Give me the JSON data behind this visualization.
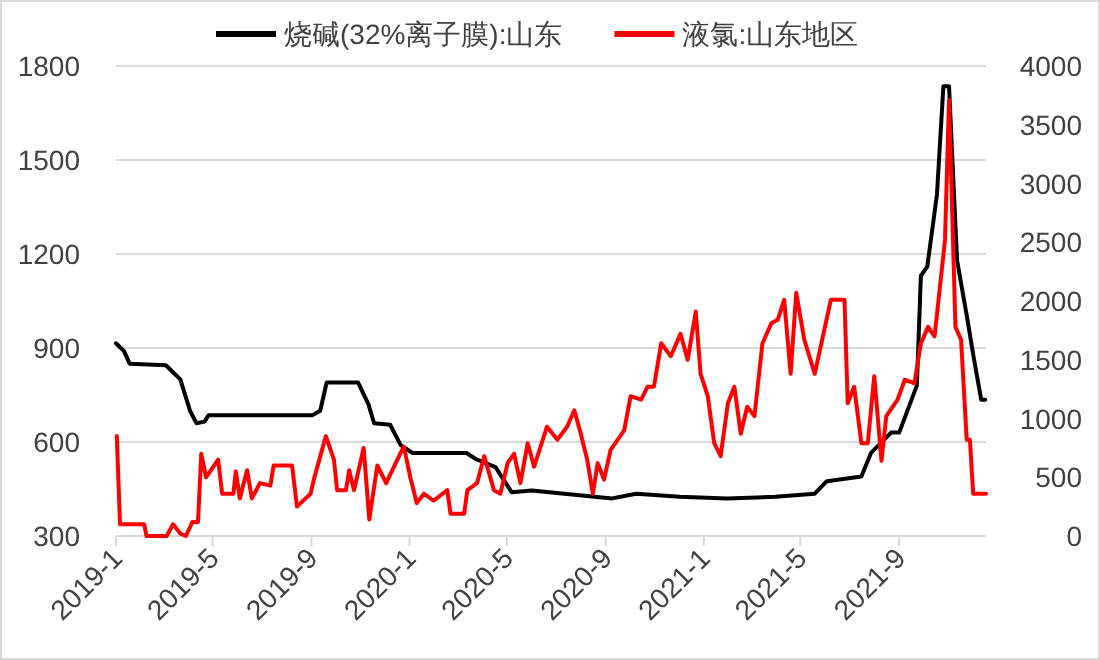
{
  "chart_data": {
    "type": "line",
    "legend": "top",
    "grid": "y",
    "line_style": "solid",
    "xlim": [
      "2019-01-01",
      "2021-12-18"
    ],
    "xticks": [
      {
        "value": "2019-01-01",
        "label": "2019-1"
      },
      {
        "value": "2019-05-01",
        "label": "2019-5"
      },
      {
        "value": "2019-09-01",
        "label": "2019-9"
      },
      {
        "value": "2020-01-01",
        "label": "2020-1"
      },
      {
        "value": "2020-05-01",
        "label": "2020-5"
      },
      {
        "value": "2020-09-01",
        "label": "2020-9"
      },
      {
        "value": "2021-01-01",
        "label": "2021-1"
      },
      {
        "value": "2021-05-01",
        "label": "2021-5"
      },
      {
        "value": "2021-09-01",
        "label": "2021-9"
      }
    ],
    "ylim": [
      300,
      1800
    ],
    "yticks": [
      300,
      600,
      900,
      1200,
      1500,
      1800
    ],
    "y2lim": [
      0,
      4000
    ],
    "y2ticks": [
      0,
      500,
      1000,
      1500,
      2000,
      2500,
      3000,
      3500,
      4000
    ],
    "series": [
      {
        "name": "烧碱(32%离子膜):山东",
        "color": "#000000",
        "x": [
          "2019-01-01",
          "2019-01-11",
          "2019-01-18",
          "2019-03-04",
          "2019-03-22",
          "2019-04-03",
          "2019-04-11",
          "2019-04-21",
          "2019-04-26",
          "2019-09-02",
          "2019-09-12",
          "2019-09-20",
          "2019-10-29",
          "2019-11-11",
          "2019-11-18",
          "2019-12-08",
          "2019-12-21",
          "2020-01-05",
          "2020-03-12",
          "2020-03-24",
          "2020-04-17",
          "2020-05-07",
          "2020-06-01",
          "2020-09-09",
          "2020-10-09",
          "2020-12-02",
          "2021-01-30",
          "2021-03-31",
          "2021-05-19",
          "2021-06-03",
          "2021-07-16",
          "2021-07-28",
          "2021-08-22",
          "2021-09-01",
          "2021-09-23",
          "2021-09-28",
          "2021-10-06",
          "2021-10-18",
          "2021-10-26",
          "2021-11-02",
          "2021-11-12",
          "2021-11-25",
          "2021-12-02",
          "2021-12-12",
          "2021-12-17"
        ],
        "values": [
          915,
          890,
          850,
          845,
          800,
          700,
          660,
          665,
          685,
          685,
          700,
          790,
          790,
          720,
          660,
          655,
          590,
          565,
          565,
          545,
          520,
          440,
          445,
          420,
          435,
          425,
          420,
          425,
          435,
          475,
          490,
          565,
          630,
          630,
          780,
          1130,
          1160,
          1390,
          1735,
          1735,
          1180,
          990,
          880,
          735,
          735
        ]
      },
      {
        "name": "液氯:山东地区",
        "color": "#ff0000",
        "axis": "y2",
        "x": [
          "2019-01-02",
          "2019-01-06",
          "2019-02-05",
          "2019-02-08",
          "2019-03-05",
          "2019-03-13",
          "2019-03-22",
          "2019-03-29",
          "2019-04-06",
          "2019-04-13",
          "2019-04-17",
          "2019-04-23",
          "2019-05-08",
          "2019-05-13",
          "2019-05-27",
          "2019-05-30",
          "2019-06-04",
          "2019-06-13",
          "2019-06-19",
          "2019-06-29",
          "2019-07-12",
          "2019-07-16",
          "2019-08-08",
          "2019-08-14",
          "2019-08-31",
          "2019-09-04",
          "2019-09-19",
          "2019-09-29",
          "2019-10-03",
          "2019-10-14",
          "2019-10-18",
          "2019-10-24",
          "2019-11-05",
          "2019-11-12",
          "2019-11-22",
          "2019-12-03",
          "2019-12-19",
          "2019-12-25",
          "2020-01-02",
          "2020-01-10",
          "2020-01-19",
          "2020-01-31",
          "2020-02-17",
          "2020-02-21",
          "2020-03-09",
          "2020-03-13",
          "2020-03-25",
          "2020-04-03",
          "2020-04-15",
          "2020-04-23",
          "2020-05-02",
          "2020-05-10",
          "2020-05-18",
          "2020-05-27",
          "2020-06-04",
          "2020-06-20",
          "2020-07-03",
          "2020-07-15",
          "2020-07-24",
          "2020-08-01",
          "2020-08-09",
          "2020-08-16",
          "2020-08-22",
          "2020-08-30",
          "2020-09-07",
          "2020-09-24",
          "2020-10-02",
          "2020-10-15",
          "2020-10-23",
          "2020-10-31",
          "2020-11-09",
          "2020-11-21",
          "2020-12-03",
          "2020-12-12",
          "2020-12-22",
          "2020-12-28",
          "2021-01-06",
          "2021-01-14",
          "2021-01-22",
          "2021-01-31",
          "2021-02-08",
          "2021-02-16",
          "2021-02-24",
          "2021-03-05",
          "2021-03-15",
          "2021-03-26",
          "2021-04-03",
          "2021-04-11",
          "2021-04-19",
          "2021-04-26",
          "2021-05-06",
          "2021-05-19",
          "2021-06-08",
          "2021-06-25",
          "2021-06-29",
          "2021-07-07",
          "2021-07-16",
          "2021-07-24",
          "2021-08-01",
          "2021-08-10",
          "2021-08-16",
          "2021-08-30",
          "2021-09-08",
          "2021-09-20",
          "2021-09-28",
          "2021-10-07",
          "2021-10-15",
          "2021-10-19",
          "2021-10-28",
          "2021-11-02",
          "2021-11-10",
          "2021-11-17",
          "2021-11-24",
          "2021-11-28",
          "2021-12-02",
          "2021-12-18"
        ],
        "values": [
          850,
          100,
          100,
          0,
          0,
          100,
          20,
          0,
          120,
          120,
          700,
          500,
          650,
          360,
          360,
          550,
          320,
          560,
          320,
          450,
          430,
          600,
          600,
          250,
          360,
          480,
          850,
          650,
          390,
          390,
          560,
          390,
          750,
          140,
          600,
          450,
          680,
          760,
          500,
          280,
          360,
          300,
          390,
          190,
          190,
          390,
          450,
          680,
          390,
          360,
          620,
          700,
          450,
          790,
          590,
          930,
          820,
          930,
          1070,
          870,
          650,
          360,
          620,
          480,
          730,
          900,
          1190,
          1160,
          1270,
          1270,
          1640,
          1530,
          1720,
          1500,
          1910,
          1380,
          1190,
          790,
          680,
          1130,
          1270,
          870,
          1100,
          1020,
          1640,
          1810,
          1840,
          2010,
          1380,
          2070,
          1670,
          1380,
          2010,
          2010,
          1130,
          1270,
          790,
          790,
          1360,
          640,
          1020,
          1160,
          1330,
          1300,
          1640,
          1780,
          1700,
          1950,
          2520,
          3710,
          1780,
          1670,
          820,
          820,
          360,
          360
        ]
      }
    ]
  }
}
